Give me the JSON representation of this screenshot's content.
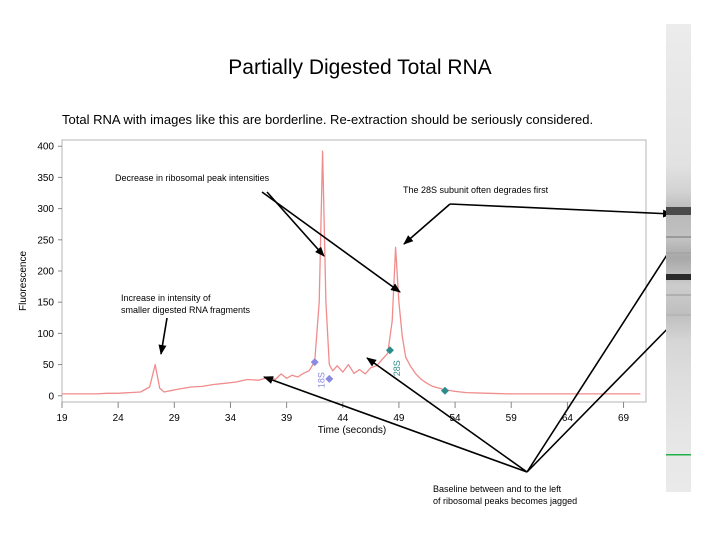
{
  "page": {
    "title": "Partially Digested Total RNA",
    "subtitle": "Total RNA with images like this are borderline.  Re-extraction should be seriously considered."
  },
  "chart_data": {
    "type": "line",
    "xlabel": "Time (seconds)",
    "ylabel": "Fluorescence",
    "xlim": [
      19,
      71
    ],
    "ylim": [
      -10,
      410
    ],
    "xticks": [
      19,
      24,
      29,
      34,
      39,
      44,
      49,
      54,
      59,
      64,
      69
    ],
    "yticks": [
      0,
      50,
      100,
      150,
      200,
      250,
      300,
      350,
      400
    ],
    "grid": false,
    "series": [
      {
        "color": "#f08c8c",
        "x": [
          19,
          20,
          21,
          22,
          23,
          24,
          25,
          26,
          26.8,
          27.3,
          27.7,
          28.1,
          28.6,
          29.5,
          30.5,
          31.5,
          32.5,
          33.5,
          34.5,
          35.5,
          36.5,
          37.5,
          38,
          38.5,
          39,
          39.5,
          40,
          40.5,
          41,
          41.5,
          41.9,
          42.2,
          42.5,
          42.8,
          43.1,
          43.5,
          44,
          44.5,
          45,
          45.5,
          46,
          46.5,
          47,
          47.5,
          48,
          48.4,
          48.7,
          49,
          49.3,
          49.6,
          50,
          50.5,
          51,
          51.5,
          52,
          53,
          54,
          55,
          57,
          59,
          61,
          63,
          65,
          67,
          69,
          70.5
        ],
        "y": [
          3,
          3,
          3,
          3,
          4,
          4,
          5,
          6,
          14,
          50,
          12,
          6,
          8,
          11,
          14,
          15,
          18,
          20,
          22,
          26,
          25,
          30,
          26,
          35,
          28,
          33,
          30,
          36,
          40,
          55,
          150,
          392,
          150,
          50,
          40,
          48,
          38,
          50,
          36,
          42,
          35,
          45,
          48,
          58,
          68,
          120,
          238,
          150,
          95,
          62,
          48,
          35,
          26,
          20,
          15,
          10,
          7,
          5,
          4,
          3,
          3,
          3,
          3,
          3,
          3,
          3
        ]
      }
    ],
    "markers": [
      {
        "label": "18S",
        "x": 41.5,
        "y": 54,
        "color": "#8a8ae0"
      },
      {
        "x": 42.8,
        "y": 27,
        "color": "#8a8ae0"
      },
      {
        "label": "28S",
        "x": 48.2,
        "y": 73,
        "color": "#2e8b8b"
      },
      {
        "x": 53.1,
        "y": 8,
        "color": "#2e8b8b"
      }
    ]
  },
  "annotations": {
    "decrease": "Decrease in ribosomal peak intensities",
    "subunit_28s": "The 28S subunit often degrades first",
    "increase": "Increase in intensity of\nsmaller digested RNA fragments",
    "baseline": "Baseline between and to the left\nof ribosomal peaks becomes jagged"
  }
}
